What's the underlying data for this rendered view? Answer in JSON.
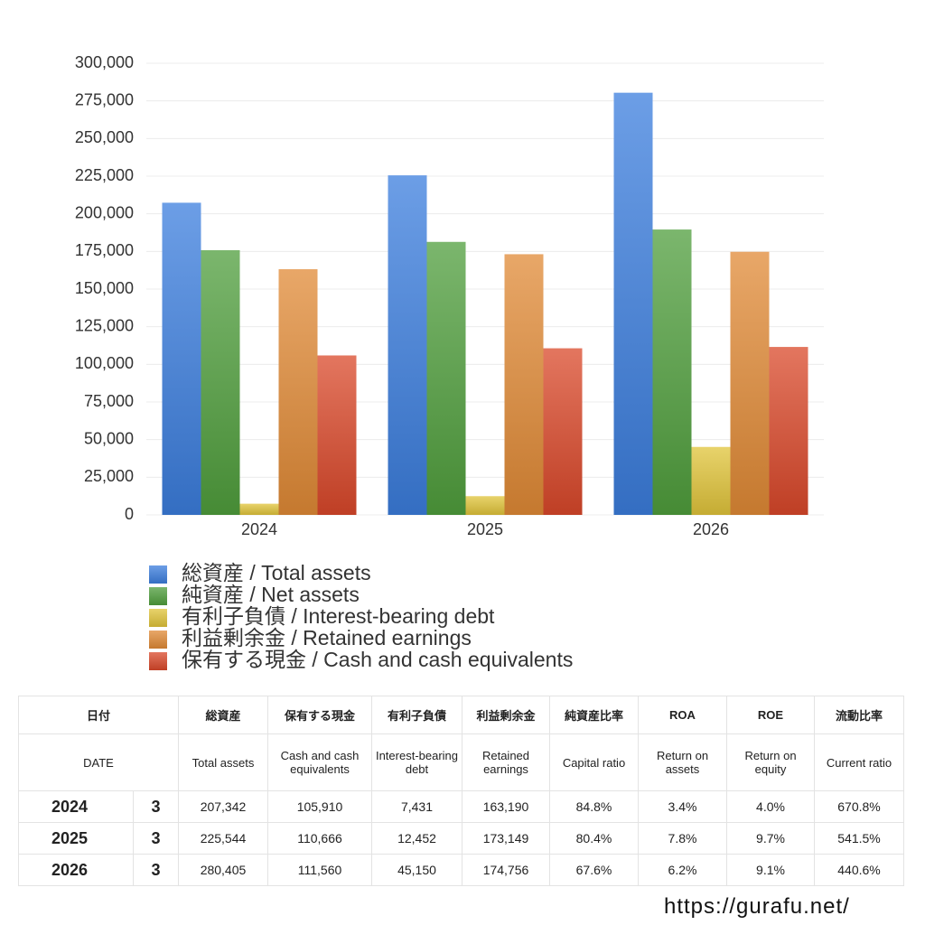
{
  "chart_data": {
    "type": "bar",
    "categories": [
      "2024",
      "2025",
      "2026"
    ],
    "series": [
      {
        "name": "総資産 / Total assets",
        "color": "#3b7ddd",
        "values": [
          207342,
          225544,
          280405
        ]
      },
      {
        "name": "純資産 / Net assets",
        "color": "#4f9e3c",
        "values": [
          175826,
          181337,
          189554
        ]
      },
      {
        "name": "有利子負債 / Interest-bearing debt",
        "color": "#e0c43a",
        "values": [
          7431,
          12452,
          45150
        ]
      },
      {
        "name": "利益剰余金 / Retained earnings",
        "color": "#e08a35",
        "values": [
          163190,
          173149,
          174756
        ]
      },
      {
        "name": "保有する現金 /  Cash and cash equivalents",
        "color": "#d9482a",
        "values": [
          105910,
          110666,
          111560
        ]
      }
    ],
    "ylim": [
      0,
      300000
    ],
    "yticks": [
      0,
      {
        "value": 25000,
        "label": "25,000"
      },
      {
        "value": 50000,
        "label": "50,000"
      },
      {
        "value": 75000,
        "label": "75,000"
      },
      {
        "value": 100000,
        "label": "100,000"
      },
      {
        "value": 125000,
        "label": "125,000"
      },
      {
        "value": 150000,
        "label": "150,000"
      },
      {
        "value": 175000,
        "label": "175,000"
      },
      {
        "value": 200000,
        "label": "200,000"
      },
      {
        "value": 225000,
        "label": "225,000"
      },
      {
        "value": 250000,
        "label": "250,000"
      },
      {
        "value": 275000,
        "label": "275,000"
      },
      {
        "value": 300000,
        "label": "300,000"
      }
    ],
    "grid": true
  },
  "table": {
    "header": [
      [
        "日付",
        "総資産",
        "保有する現金",
        "有利子負債",
        "利益剰余金",
        "純資産比率",
        "ROA",
        "ROE",
        "流動比率"
      ],
      [
        "DATE",
        "Total assets",
        "Cash and cash equivalents",
        "Interest-bearing debt",
        "Retained earnings",
        "Capital ratio",
        "Return on assets",
        "Return on equity",
        "Current ratio"
      ]
    ],
    "rows": [
      [
        "2024",
        "3",
        "207,342",
        "105,910",
        "7,431",
        "163,190",
        "84.8%",
        "3.4%",
        "4.0%",
        "670.8%"
      ],
      [
        "2025",
        "3",
        "225,544",
        "110,666",
        "12,452",
        "173,149",
        "80.4%",
        "7.8%",
        "9.7%",
        "541.5%"
      ],
      [
        "2026",
        "3",
        "280,405",
        "111,560",
        "45,150",
        "174,756",
        "67.6%",
        "6.2%",
        "9.1%",
        "440.6%"
      ]
    ]
  },
  "footer": "https://gurafu.net/"
}
